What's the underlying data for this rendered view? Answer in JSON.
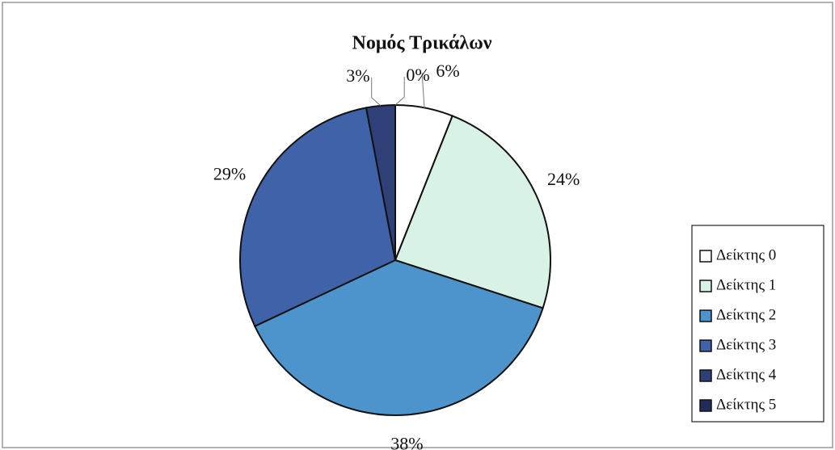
{
  "chart_data": {
    "type": "pie",
    "title": "Νομός Τρικάλων",
    "categories": [
      "Δείκτης 0",
      "Δείκτης 1",
      "Δείκτης 2",
      "Δείκτης 3",
      "Δείκτης 4",
      "Δείκτης 5"
    ],
    "values": [
      6,
      24,
      38,
      29,
      3,
      0
    ],
    "value_labels": [
      "6%",
      "24%",
      "38%",
      "29%",
      "3%",
      "0%"
    ],
    "colors": [
      "#ffffff",
      "#d8f3e6",
      "#4d93cc",
      "#3f62a8",
      "#2f4079",
      "#232b5c"
    ],
    "legend": "right"
  }
}
